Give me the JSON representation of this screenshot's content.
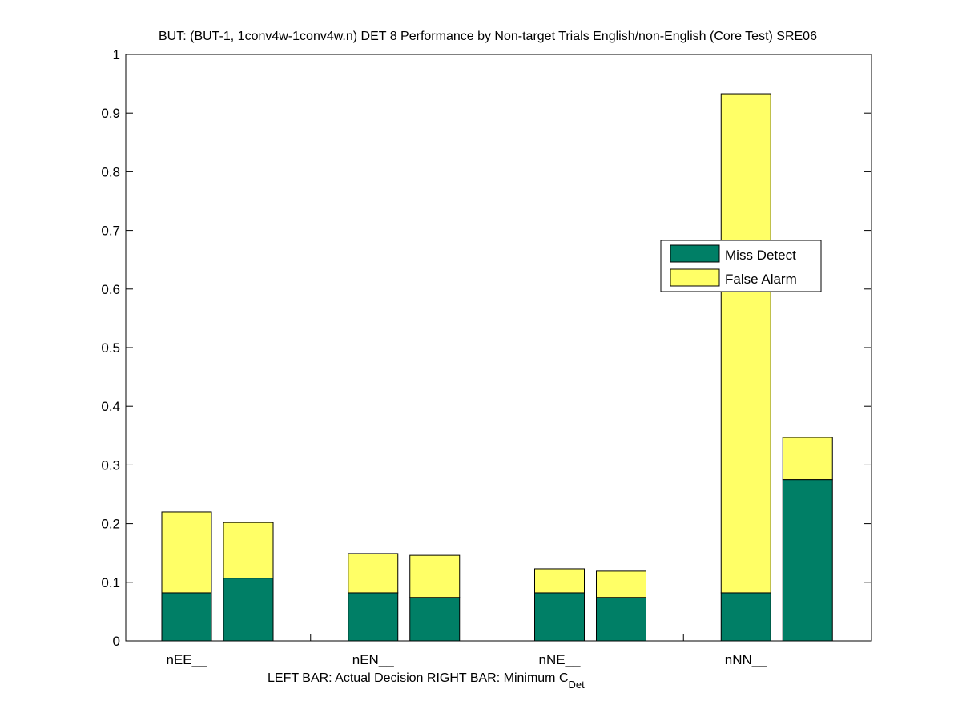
{
  "chart_data": {
    "type": "bar",
    "stacked": true,
    "title": "BUT: (BUT-1, 1conv4w-1conv4w.n) DET 8 Performance by Non-target Trials English/non-English (Core Test) SRE06",
    "xlabel_main": "LEFT BAR: Actual Decision     RIGHT BAR: Minimum C",
    "xlabel_subscript": "Det",
    "ylabel": "",
    "ylim": [
      0,
      1
    ],
    "yticks": [
      "0",
      "0.1",
      "0.2",
      "0.3",
      "0.4",
      "0.5",
      "0.6",
      "0.7",
      "0.8",
      "0.9",
      "1"
    ],
    "categories": [
      "nEE__",
      "nEN__",
      "nNE__",
      "nNN__"
    ],
    "bars_per_category": [
      "Actual Decision",
      "Minimum C_Det"
    ],
    "series": [
      {
        "name": "Miss Detect",
        "color": "#007f66",
        "actual": [
          0.082,
          0.082,
          0.082,
          0.082
        ],
        "minimum": [
          0.107,
          0.074,
          0.074,
          0.275
        ]
      },
      {
        "name": "False Alarm",
        "color": "#ffff66",
        "actual": [
          0.138,
          0.067,
          0.041,
          0.851
        ],
        "minimum": [
          0.095,
          0.072,
          0.045,
          0.072
        ]
      }
    ],
    "totals": {
      "actual": [
        0.22,
        0.149,
        0.123,
        0.933
      ],
      "minimum": [
        0.202,
        0.146,
        0.119,
        0.347
      ]
    },
    "legend": [
      "Miss Detect",
      "False Alarm"
    ],
    "legend_position": "center-right",
    "grid": false
  }
}
